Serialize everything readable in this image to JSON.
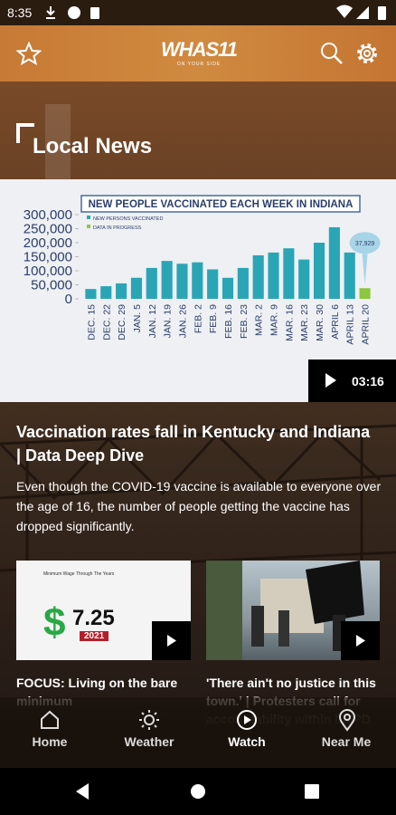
{
  "status_bar": {
    "time": "8:35"
  },
  "header": {
    "logo": "WHAS11",
    "logo_tagline": "ON YOUR SIDE"
  },
  "section": {
    "title": "Local News"
  },
  "featured": {
    "duration": "03:16",
    "headline": "Vaccination rates fall in Kentucky and Indiana | Data Deep Dive",
    "summary": "Even though the COVID-19 vaccine is available to everyone over the age of 16, the number of people getting the vaccine has dropped significantly.",
    "chart_data": {
      "type": "bar",
      "title": "NEW PEOPLE VACCINATED EACH WEEK IN INDIANA",
      "categories": [
        "DEC. 15",
        "DEC. 22",
        "DEC. 29",
        "JAN. 5",
        "JAN. 12",
        "JAN. 19",
        "JAN. 26",
        "FEB. 2",
        "FEB. 9",
        "FEB. 16",
        "FEB. 23",
        "MAR. 2",
        "MAR. 9",
        "MAR. 16",
        "MAR. 23",
        "MAR. 30",
        "APRIL 6",
        "APRIL 13",
        "APRIL 20"
      ],
      "series": [
        {
          "name": "NEW PERSONS VACCINATED",
          "color": "#2aa5b6",
          "values": [
            35000,
            45000,
            55000,
            75000,
            110000,
            135000,
            125000,
            130000,
            105000,
            75000,
            110000,
            155000,
            165000,
            180000,
            140000,
            200000,
            255000,
            165000,
            null
          ]
        },
        {
          "name": "DATA IN PROGRESS",
          "color": "#8dc63f",
          "values": [
            null,
            null,
            null,
            null,
            null,
            null,
            null,
            null,
            null,
            null,
            null,
            null,
            null,
            null,
            null,
            null,
            null,
            null,
            37929
          ],
          "value_labels": [
            null,
            null,
            null,
            null,
            null,
            null,
            null,
            null,
            null,
            null,
            null,
            null,
            null,
            null,
            null,
            null,
            null,
            null,
            "37,929"
          ]
        }
      ],
      "ylim": [
        0,
        300000
      ],
      "yticks": [
        {
          "value": 0,
          "label": "0"
        },
        {
          "value": 50000,
          "label": "50,000"
        },
        {
          "value": 100000,
          "label": "100,000"
        },
        {
          "value": 150000,
          "label": "150,000"
        },
        {
          "value": 200000,
          "label": "200,000"
        },
        {
          "value": 250000,
          "label": "250,000"
        },
        {
          "value": 300000,
          "label": "300,000"
        }
      ]
    }
  },
  "cards": [
    {
      "headline": "FOCUS: Living on the bare minimum",
      "thumb_title": "Minimum Wage Through The Years",
      "thumb_symbol": "$",
      "thumb_value": "7.25",
      "thumb_year": "2021"
    },
    {
      "headline": "'There ain't no justice in this town.' | Protesters call for accountability within LMPD"
    }
  ],
  "nav": [
    {
      "label": "Home"
    },
    {
      "label": "Weather"
    },
    {
      "label": "Watch"
    },
    {
      "label": "Near Me"
    }
  ]
}
